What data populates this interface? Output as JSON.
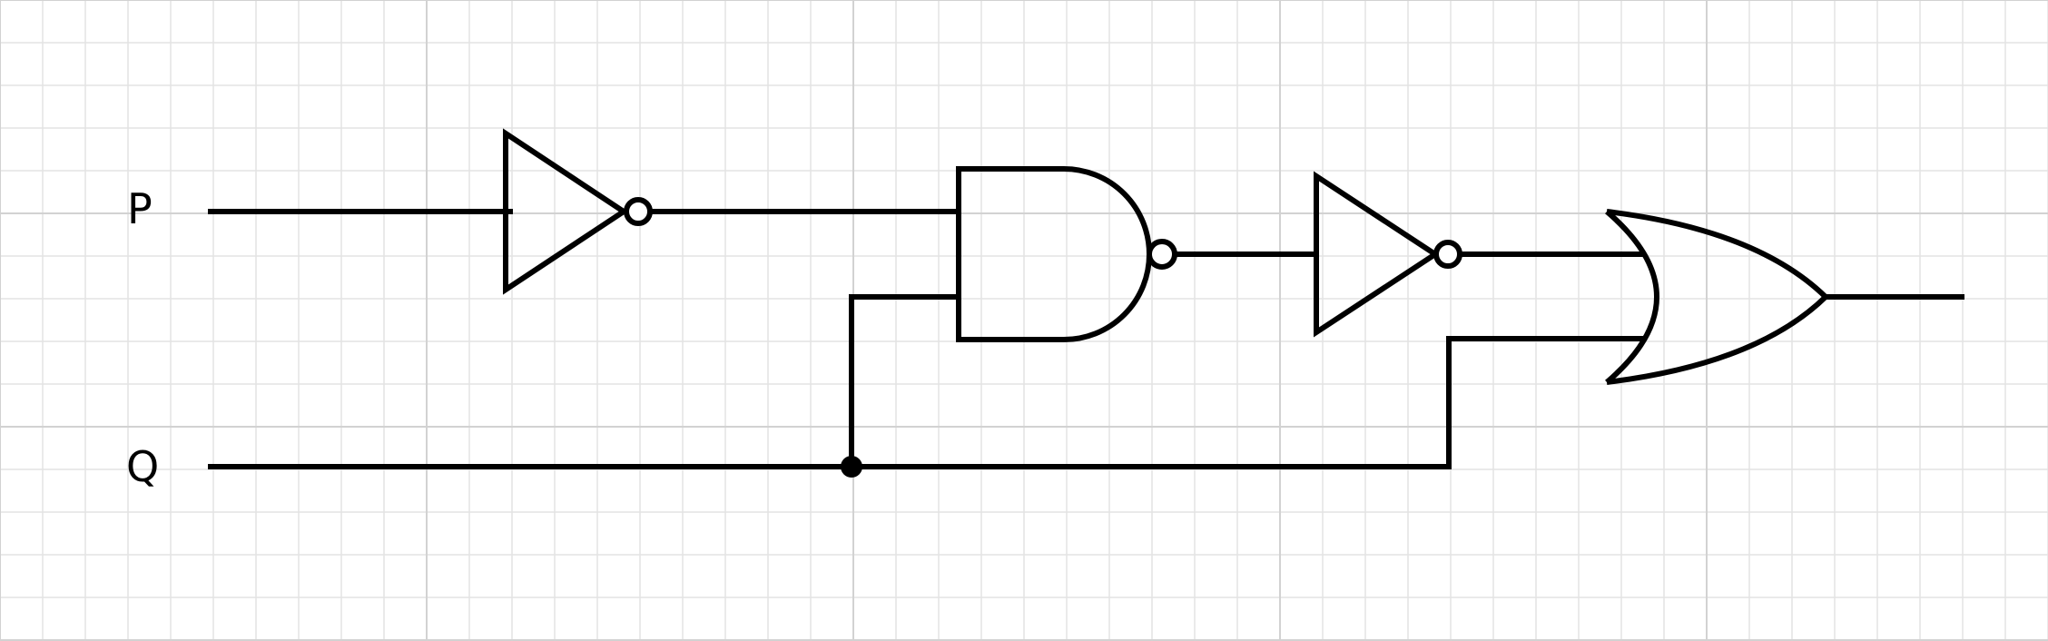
{
  "diagram": {
    "type": "logic-circuit",
    "inputs": [
      {
        "id": "P",
        "label": "P"
      },
      {
        "id": "Q",
        "label": "Q"
      }
    ],
    "gates": [
      {
        "id": "not1",
        "kind": "NOT",
        "inputs": [
          "P"
        ]
      },
      {
        "id": "nand1",
        "kind": "NAND",
        "inputs": [
          "not1",
          "Q"
        ]
      },
      {
        "id": "not2",
        "kind": "NOT",
        "inputs": [
          "nand1"
        ]
      },
      {
        "id": "or1",
        "kind": "OR",
        "inputs": [
          "not2",
          "Q"
        ]
      }
    ],
    "output": {
      "from": "or1"
    },
    "colors": {
      "wire": "#000000",
      "grid_minor": "#e3e3e3",
      "grid_major": "#d2d2d2",
      "background": "#ffffff"
    }
  }
}
